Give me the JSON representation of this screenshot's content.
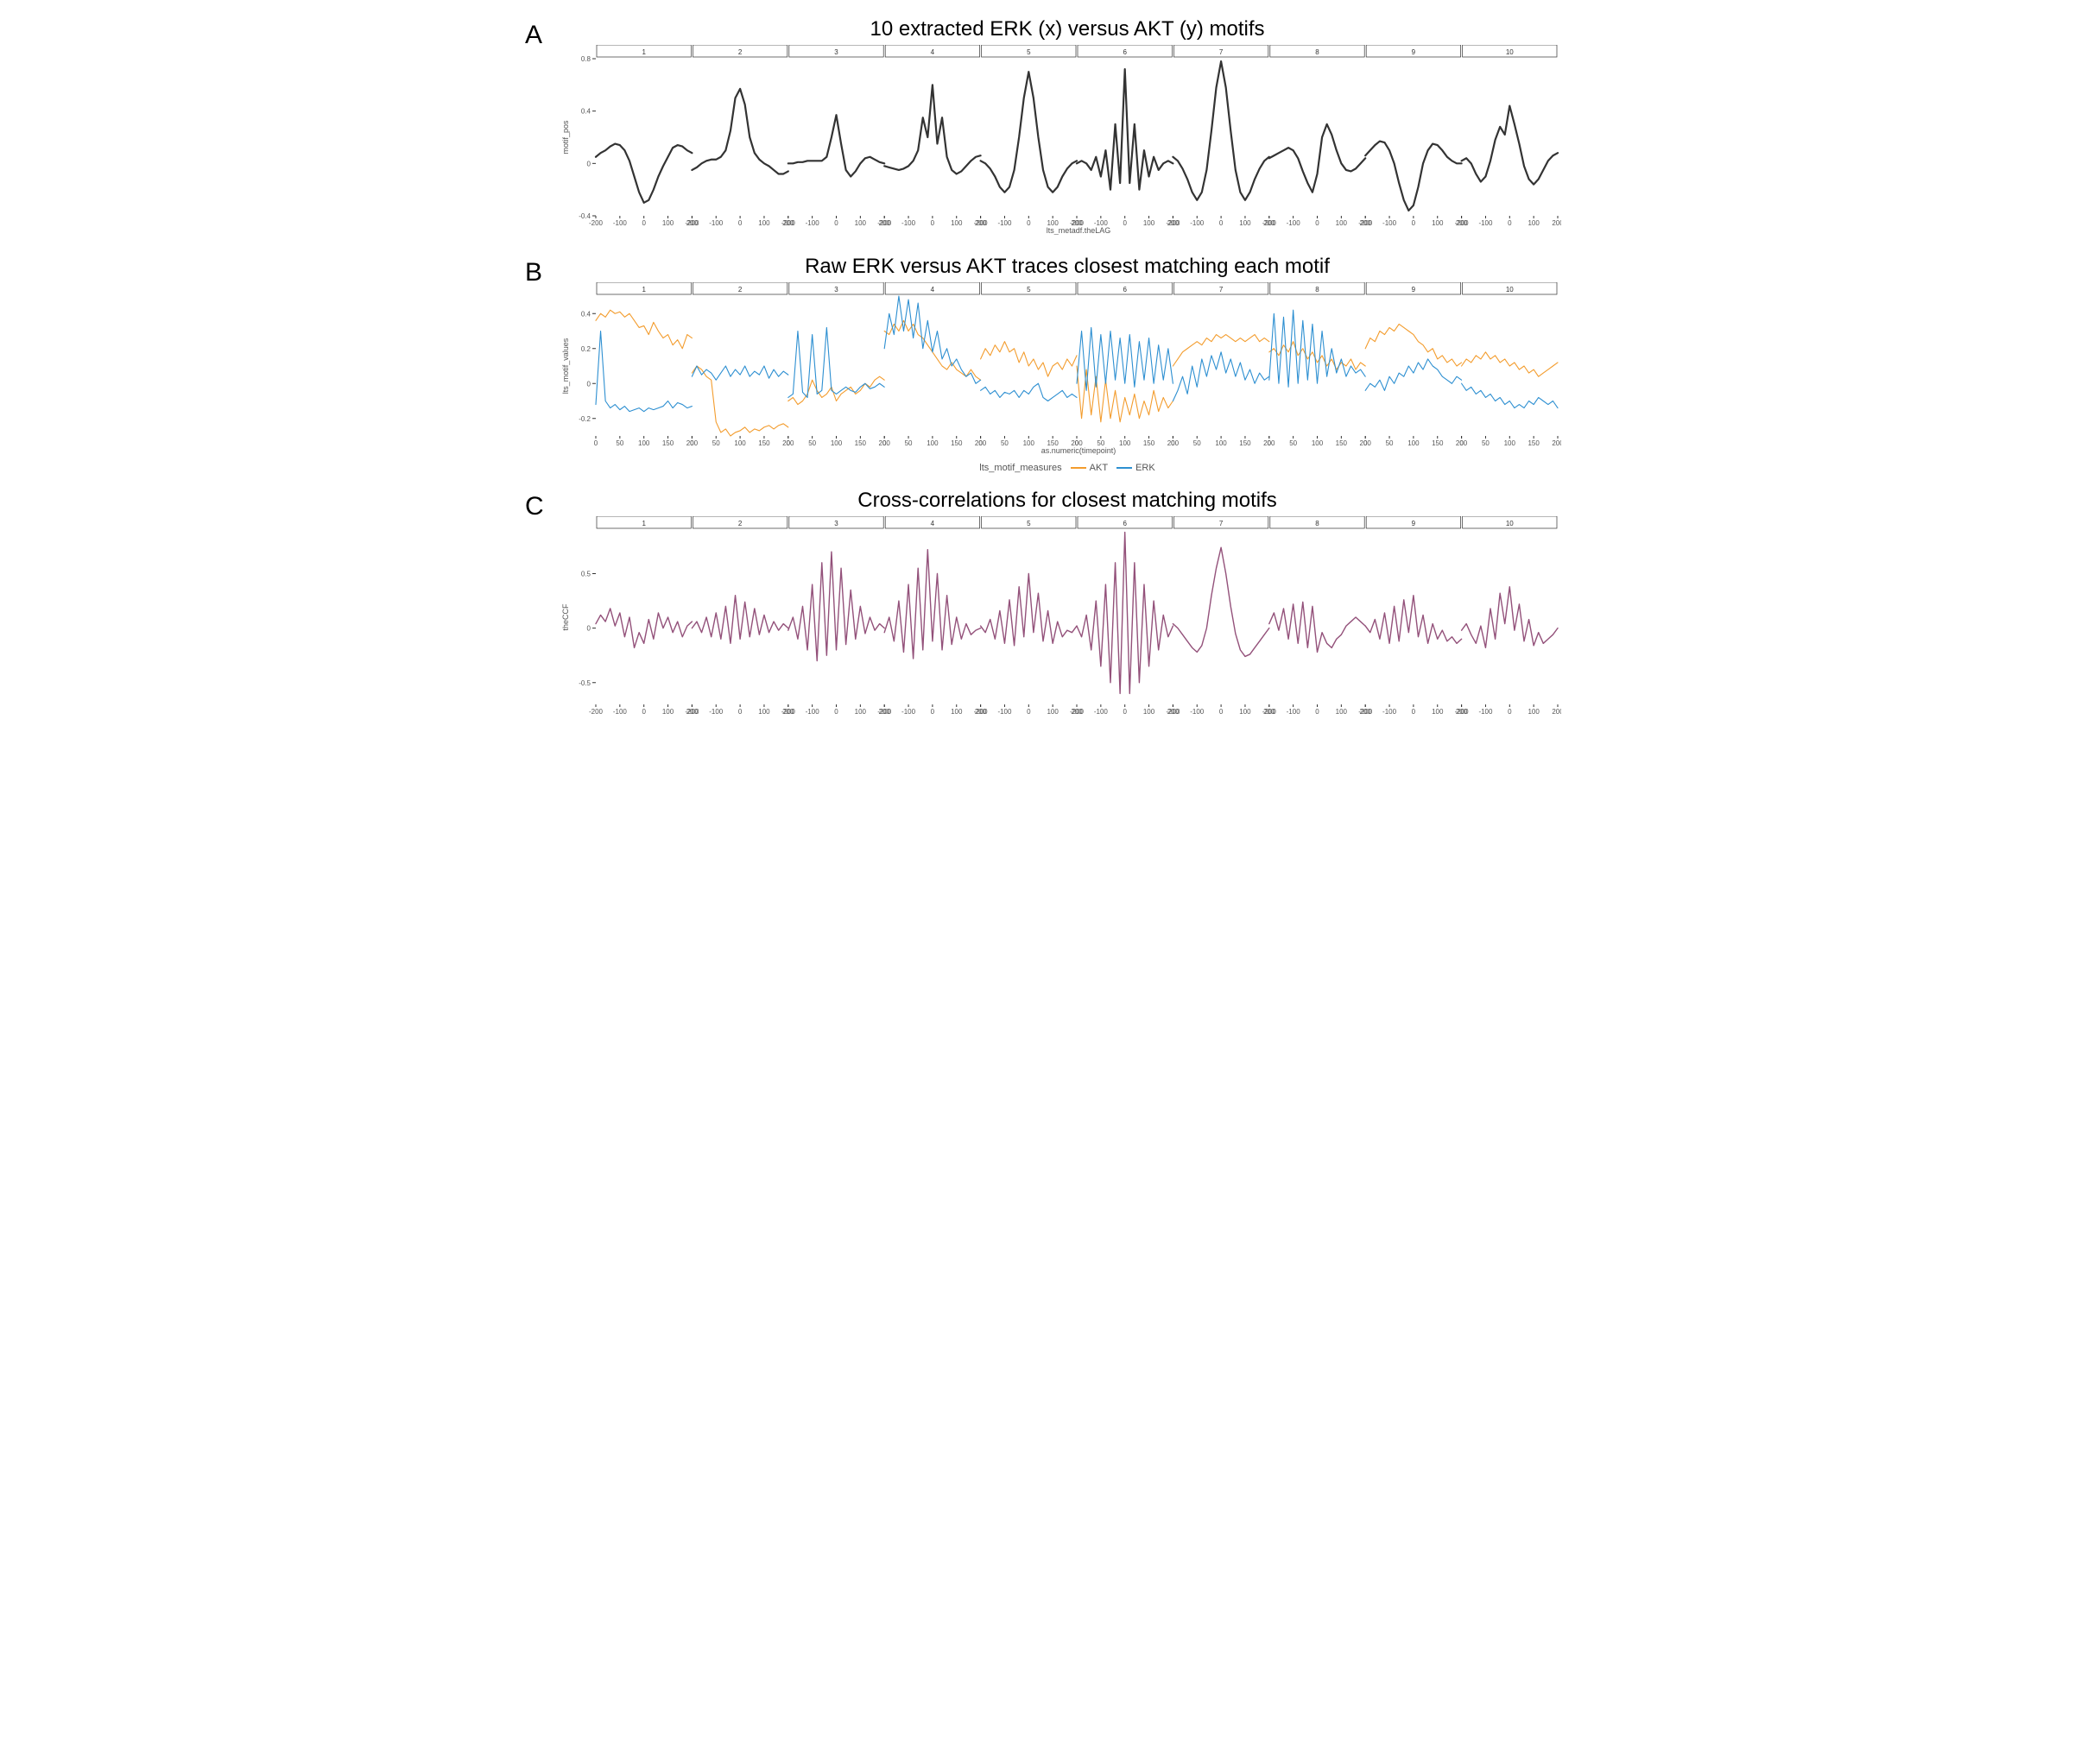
{
  "panels": {
    "A": {
      "letter": "A",
      "title": "10 extracted ERK (x) versus AKT (y) motifs",
      "type": "line",
      "facets": 10,
      "facet_labels": [
        "1",
        "2",
        "3",
        "4",
        "5",
        "6",
        "7",
        "8",
        "9",
        "10"
      ],
      "ylabel": "motif_pos",
      "xlabel": "lts_metadf.theLAG",
      "xlim": [
        -200,
        200
      ],
      "ylim": [
        -0.4,
        0.8
      ],
      "yticks": [
        -0.4,
        0.0,
        0.4,
        0.8
      ],
      "xticks": [
        -200,
        -100,
        0,
        100,
        200
      ],
      "line_color": "#333333",
      "line_width": 2.2,
      "label_fontsize": 9,
      "facet_label_fontsize": 8,
      "series": [
        {
          "y": [
            0.05,
            0.08,
            0.1,
            0.13,
            0.15,
            0.14,
            0.1,
            0.02,
            -0.1,
            -0.22,
            -0.3,
            -0.28,
            -0.2,
            -0.1,
            -0.02,
            0.05,
            0.12,
            0.14,
            0.13,
            0.1,
            0.08
          ]
        },
        {
          "y": [
            -0.05,
            -0.03,
            0.0,
            0.02,
            0.03,
            0.03,
            0.05,
            0.1,
            0.25,
            0.5,
            0.57,
            0.45,
            0.2,
            0.08,
            0.03,
            0.0,
            -0.02,
            -0.05,
            -0.08,
            -0.08,
            -0.06
          ]
        },
        {
          "y": [
            0.0,
            0.0,
            0.01,
            0.01,
            0.02,
            0.02,
            0.02,
            0.02,
            0.05,
            0.2,
            0.37,
            0.15,
            -0.05,
            -0.1,
            -0.06,
            0.0,
            0.04,
            0.05,
            0.03,
            0.01,
            0.0
          ]
        },
        {
          "y": [
            -0.02,
            -0.03,
            -0.04,
            -0.05,
            -0.04,
            -0.02,
            0.02,
            0.1,
            0.35,
            0.2,
            0.6,
            0.15,
            0.35,
            0.05,
            -0.05,
            -0.08,
            -0.06,
            -0.02,
            0.02,
            0.05,
            0.06
          ]
        },
        {
          "y": [
            0.02,
            0.0,
            -0.04,
            -0.1,
            -0.18,
            -0.22,
            -0.18,
            -0.05,
            0.2,
            0.5,
            0.7,
            0.5,
            0.2,
            -0.05,
            -0.18,
            -0.22,
            -0.18,
            -0.1,
            -0.04,
            0.0,
            0.02
          ]
        },
        {
          "y": [
            0.0,
            0.02,
            0.0,
            -0.05,
            0.05,
            -0.1,
            0.1,
            -0.2,
            0.3,
            -0.15,
            0.72,
            -0.15,
            0.3,
            -0.2,
            0.1,
            -0.1,
            0.05,
            -0.05,
            0.0,
            0.02,
            0.0
          ]
        },
        {
          "y": [
            0.05,
            0.02,
            -0.04,
            -0.12,
            -0.22,
            -0.28,
            -0.22,
            -0.05,
            0.25,
            0.58,
            0.78,
            0.58,
            0.25,
            -0.05,
            -0.22,
            -0.28,
            -0.22,
            -0.12,
            -0.04,
            0.02,
            0.05
          ]
        },
        {
          "y": [
            0.04,
            0.06,
            0.08,
            0.1,
            0.12,
            0.1,
            0.04,
            -0.06,
            -0.15,
            -0.22,
            -0.08,
            0.2,
            0.3,
            0.22,
            0.1,
            0.0,
            -0.05,
            -0.06,
            -0.04,
            0.0,
            0.04
          ]
        },
        {
          "y": [
            0.06,
            0.1,
            0.14,
            0.17,
            0.16,
            0.1,
            0.0,
            -0.15,
            -0.28,
            -0.36,
            -0.32,
            -0.18,
            0.0,
            0.1,
            0.15,
            0.14,
            0.1,
            0.05,
            0.02,
            0.0,
            0.0
          ]
        },
        {
          "y": [
            0.02,
            0.04,
            0.0,
            -0.08,
            -0.14,
            -0.1,
            0.02,
            0.18,
            0.28,
            0.22,
            0.44,
            0.3,
            0.15,
            -0.02,
            -0.12,
            -0.16,
            -0.12,
            -0.05,
            0.02,
            0.06,
            0.08
          ]
        }
      ]
    },
    "B": {
      "letter": "B",
      "title": "Raw ERK versus AKT traces closest matching each motif",
      "type": "line",
      "facets": 10,
      "facet_labels": [
        "1",
        "2",
        "3",
        "4",
        "5",
        "6",
        "7",
        "8",
        "9",
        "10"
      ],
      "ylabel": "lts_motif_values",
      "xlabel": "as.numeric(timepoint)",
      "xlim": [
        0,
        200
      ],
      "ylim": [
        -0.3,
        0.5
      ],
      "yticks": [
        -0.2,
        0.0,
        0.2,
        0.4
      ],
      "xticks": [
        0,
        50,
        100,
        150,
        200
      ],
      "legend_title": "lts_motif_measures",
      "legend_items": [
        {
          "label": "AKT",
          "color": "#f39c2d"
        },
        {
          "label": "ERK",
          "color": "#2d8fd1"
        }
      ],
      "line_width": 1.1,
      "label_fontsize": 9,
      "facet_label_fontsize": 8,
      "series": [
        {
          "akt": [
            0.36,
            0.4,
            0.38,
            0.42,
            0.4,
            0.41,
            0.38,
            0.4,
            0.36,
            0.32,
            0.33,
            0.28,
            0.35,
            0.3,
            0.26,
            0.28,
            0.22,
            0.25,
            0.2,
            0.28,
            0.26
          ],
          "erk": [
            -0.12,
            0.3,
            -0.1,
            -0.14,
            -0.12,
            -0.15,
            -0.13,
            -0.16,
            -0.15,
            -0.14,
            -0.16,
            -0.14,
            -0.15,
            -0.14,
            -0.13,
            -0.1,
            -0.14,
            -0.11,
            -0.12,
            -0.14,
            -0.13
          ]
        },
        {
          "akt": [
            0.06,
            0.1,
            0.08,
            0.04,
            0.02,
            -0.22,
            -0.28,
            -0.26,
            -0.3,
            -0.28,
            -0.27,
            -0.25,
            -0.28,
            -0.26,
            -0.27,
            -0.25,
            -0.24,
            -0.26,
            -0.24,
            -0.23,
            -0.25
          ],
          "erk": [
            0.04,
            0.1,
            0.05,
            0.08,
            0.06,
            0.02,
            0.06,
            0.1,
            0.04,
            0.08,
            0.05,
            0.1,
            0.04,
            0.07,
            0.05,
            0.1,
            0.03,
            0.08,
            0.04,
            0.07,
            0.05
          ]
        },
        {
          "akt": [
            -0.1,
            -0.08,
            -0.12,
            -0.1,
            -0.06,
            0.02,
            -0.04,
            -0.08,
            -0.06,
            -0.02,
            -0.1,
            -0.06,
            -0.04,
            -0.02,
            -0.06,
            -0.04,
            0.0,
            -0.02,
            0.02,
            0.04,
            0.02
          ],
          "erk": [
            -0.08,
            -0.06,
            0.3,
            -0.05,
            -0.08,
            0.28,
            -0.06,
            -0.04,
            0.32,
            -0.04,
            -0.06,
            -0.04,
            -0.02,
            -0.04,
            -0.05,
            -0.02,
            0.0,
            -0.03,
            -0.02,
            0.0,
            -0.02
          ]
        },
        {
          "akt": [
            0.3,
            0.28,
            0.34,
            0.3,
            0.36,
            0.3,
            0.34,
            0.28,
            0.26,
            0.22,
            0.18,
            0.14,
            0.1,
            0.08,
            0.12,
            0.08,
            0.06,
            0.04,
            0.08,
            0.04,
            0.02
          ],
          "erk": [
            0.2,
            0.4,
            0.28,
            0.5,
            0.3,
            0.48,
            0.26,
            0.46,
            0.2,
            0.36,
            0.18,
            0.3,
            0.14,
            0.2,
            0.1,
            0.14,
            0.08,
            0.04,
            0.06,
            0.0,
            0.02
          ]
        },
        {
          "akt": [
            0.14,
            0.2,
            0.16,
            0.22,
            0.18,
            0.24,
            0.18,
            0.2,
            0.12,
            0.18,
            0.1,
            0.14,
            0.08,
            0.12,
            0.04,
            0.1,
            0.12,
            0.08,
            0.14,
            0.1,
            0.16
          ],
          "erk": [
            -0.04,
            -0.02,
            -0.06,
            -0.04,
            -0.08,
            -0.05,
            -0.06,
            -0.04,
            -0.08,
            -0.04,
            -0.06,
            -0.02,
            0.0,
            -0.08,
            -0.1,
            -0.08,
            -0.06,
            -0.04,
            -0.08,
            -0.06,
            -0.08
          ]
        },
        {
          "akt": [
            0.1,
            -0.2,
            0.08,
            -0.18,
            0.04,
            -0.22,
            0.02,
            -0.2,
            -0.04,
            -0.22,
            -0.08,
            -0.18,
            -0.06,
            -0.2,
            -0.1,
            -0.18,
            -0.04,
            -0.16,
            -0.08,
            -0.14,
            -0.1
          ],
          "erk": [
            0.0,
            0.3,
            -0.04,
            0.32,
            -0.02,
            0.28,
            0.0,
            0.3,
            0.02,
            0.26,
            0.0,
            0.28,
            -0.02,
            0.24,
            0.02,
            0.26,
            0.0,
            0.22,
            0.02,
            0.2,
            0.0
          ]
        },
        {
          "akt": [
            0.1,
            0.14,
            0.18,
            0.2,
            0.22,
            0.24,
            0.22,
            0.26,
            0.24,
            0.28,
            0.26,
            0.28,
            0.26,
            0.24,
            0.26,
            0.24,
            0.26,
            0.28,
            0.24,
            0.26,
            0.24
          ],
          "erk": [
            -0.1,
            -0.04,
            0.04,
            -0.06,
            0.1,
            -0.02,
            0.14,
            0.04,
            0.16,
            0.08,
            0.18,
            0.06,
            0.14,
            0.04,
            0.12,
            0.02,
            0.08,
            0.0,
            0.06,
            0.02,
            0.04
          ]
        },
        {
          "akt": [
            0.18,
            0.2,
            0.16,
            0.22,
            0.18,
            0.24,
            0.16,
            0.2,
            0.14,
            0.18,
            0.12,
            0.16,
            0.1,
            0.14,
            0.08,
            0.12,
            0.1,
            0.14,
            0.08,
            0.12,
            0.1
          ],
          "erk": [
            0.02,
            0.4,
            0.0,
            0.38,
            -0.02,
            0.42,
            0.0,
            0.36,
            0.02,
            0.34,
            0.0,
            0.3,
            0.04,
            0.2,
            0.06,
            0.14,
            0.04,
            0.1,
            0.06,
            0.08,
            0.04
          ]
        },
        {
          "akt": [
            0.2,
            0.26,
            0.24,
            0.3,
            0.28,
            0.32,
            0.3,
            0.34,
            0.32,
            0.3,
            0.28,
            0.24,
            0.22,
            0.18,
            0.2,
            0.14,
            0.16,
            0.12,
            0.14,
            0.1,
            0.12
          ],
          "erk": [
            -0.04,
            0.0,
            -0.02,
            0.02,
            -0.04,
            0.04,
            0.0,
            0.06,
            0.04,
            0.1,
            0.06,
            0.12,
            0.08,
            0.14,
            0.1,
            0.08,
            0.04,
            0.02,
            0.0,
            0.04,
            0.02
          ]
        },
        {
          "akt": [
            0.1,
            0.14,
            0.12,
            0.16,
            0.14,
            0.18,
            0.14,
            0.16,
            0.12,
            0.14,
            0.1,
            0.12,
            0.08,
            0.1,
            0.06,
            0.08,
            0.04,
            0.06,
            0.08,
            0.1,
            0.12
          ],
          "erk": [
            0.0,
            -0.04,
            -0.02,
            -0.06,
            -0.04,
            -0.08,
            -0.06,
            -0.1,
            -0.08,
            -0.12,
            -0.1,
            -0.14,
            -0.12,
            -0.14,
            -0.1,
            -0.12,
            -0.08,
            -0.1,
            -0.12,
            -0.1,
            -0.14
          ]
        }
      ]
    },
    "C": {
      "letter": "C",
      "title": "Cross-correlations for closest matching motifs",
      "type": "line",
      "facets": 10,
      "facet_labels": [
        "1",
        "2",
        "3",
        "4",
        "5",
        "6",
        "7",
        "8",
        "9",
        "10"
      ],
      "ylabel": "theCCF",
      "xlabel": "",
      "xlim": [
        -200,
        200
      ],
      "ylim": [
        -0.7,
        0.9
      ],
      "yticks": [
        -0.5,
        0.0,
        0.5
      ],
      "xticks": [
        -200,
        -100,
        0,
        100,
        200
      ],
      "line_color": "#93517a",
      "line_width": 1.4,
      "label_fontsize": 9,
      "facet_label_fontsize": 8,
      "series": [
        {
          "y": [
            0.04,
            0.12,
            0.06,
            0.18,
            0.02,
            0.14,
            -0.08,
            0.1,
            -0.18,
            -0.04,
            -0.14,
            0.08,
            -0.1,
            0.14,
            0.0,
            0.1,
            -0.04,
            0.06,
            -0.08,
            0.02,
            0.06
          ]
        },
        {
          "y": [
            0.0,
            0.06,
            -0.04,
            0.1,
            -0.08,
            0.14,
            -0.1,
            0.2,
            -0.14,
            0.3,
            -0.1,
            0.24,
            -0.08,
            0.18,
            -0.06,
            0.12,
            -0.04,
            0.06,
            -0.02,
            0.04,
            0.0
          ]
        },
        {
          "y": [
            -0.02,
            0.1,
            -0.1,
            0.2,
            -0.2,
            0.4,
            -0.3,
            0.6,
            -0.25,
            0.7,
            -0.2,
            0.55,
            -0.15,
            0.35,
            -0.1,
            0.2,
            -0.05,
            0.1,
            -0.02,
            0.04,
            0.0
          ]
        },
        {
          "y": [
            -0.04,
            0.1,
            -0.12,
            0.25,
            -0.22,
            0.4,
            -0.28,
            0.55,
            -0.2,
            0.72,
            -0.12,
            0.5,
            -0.2,
            0.3,
            -0.15,
            0.1,
            -0.1,
            0.04,
            -0.06,
            -0.02,
            0.0
          ]
        },
        {
          "y": [
            0.02,
            -0.04,
            0.08,
            -0.1,
            0.16,
            -0.14,
            0.26,
            -0.16,
            0.38,
            -0.08,
            0.5,
            -0.04,
            0.32,
            -0.12,
            0.16,
            -0.14,
            0.06,
            -0.08,
            -0.02,
            -0.04,
            0.02
          ]
        },
        {
          "y": [
            0.02,
            -0.08,
            0.12,
            -0.2,
            0.25,
            -0.35,
            0.4,
            -0.5,
            0.6,
            -0.6,
            0.88,
            -0.6,
            0.6,
            -0.5,
            0.4,
            -0.35,
            0.25,
            -0.2,
            0.12,
            -0.08,
            0.02
          ]
        },
        {
          "y": [
            0.04,
            0.0,
            -0.06,
            -0.12,
            -0.18,
            -0.22,
            -0.16,
            0.0,
            0.3,
            0.55,
            0.74,
            0.5,
            0.2,
            -0.05,
            -0.2,
            -0.26,
            -0.24,
            -0.18,
            -0.12,
            -0.06,
            0.0
          ]
        },
        {
          "y": [
            0.04,
            0.14,
            -0.02,
            0.18,
            -0.1,
            0.22,
            -0.14,
            0.24,
            -0.18,
            0.2,
            -0.22,
            -0.04,
            -0.14,
            -0.18,
            -0.1,
            -0.06,
            0.02,
            0.06,
            0.1,
            0.06,
            0.02
          ]
        },
        {
          "y": [
            0.02,
            -0.04,
            0.08,
            -0.1,
            0.14,
            -0.14,
            0.2,
            -0.12,
            0.26,
            -0.04,
            0.3,
            -0.08,
            0.12,
            -0.14,
            0.04,
            -0.1,
            -0.02,
            -0.12,
            -0.08,
            -0.14,
            -0.1
          ]
        },
        {
          "y": [
            -0.02,
            0.04,
            -0.06,
            -0.14,
            0.02,
            -0.18,
            0.18,
            -0.1,
            0.32,
            0.04,
            0.38,
            -0.02,
            0.22,
            -0.12,
            0.08,
            -0.16,
            -0.04,
            -0.14,
            -0.1,
            -0.06,
            0.0
          ]
        }
      ]
    }
  },
  "layout": {
    "facet_header_border": "#333333",
    "plot_height_A": 220,
    "plot_height_B": 200,
    "plot_height_C": 240,
    "facet_gap": 0,
    "axis_color": "#333333",
    "tick_fontsize": 8
  }
}
